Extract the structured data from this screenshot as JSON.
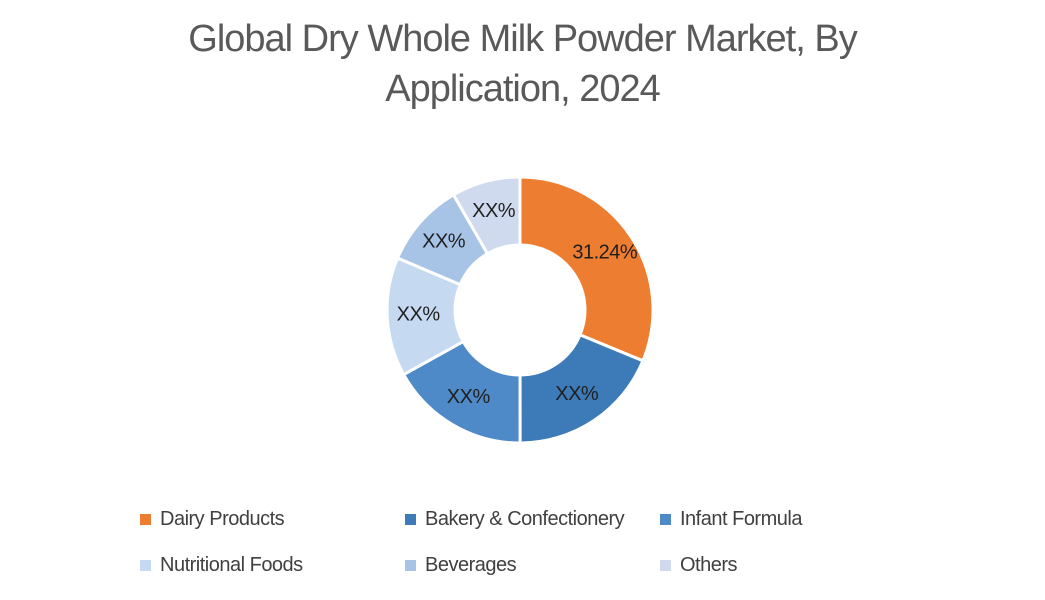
{
  "chart_data": {
    "type": "pie",
    "subtype": "donut",
    "title": "Global Dry Whole Milk Powder Market, By Application, 2024",
    "title_lines": [
      "Global Dry Whole Milk Powder Market, By",
      "Application, 2024"
    ],
    "unit": "%",
    "start_angle_deg": 0,
    "direction": "clockwise",
    "donut_hole_ratio": 0.49,
    "legend_position": "bottom",
    "grid": "off",
    "segments": [
      {
        "label": "Dairy Products",
        "value_pct": 31.24,
        "display_label": "31.24%",
        "color": "#ED7D31"
      },
      {
        "label": "Bakery & Confectionery",
        "value_pct": 18.75,
        "display_label": "XX%",
        "color": "#3D7AB8"
      },
      {
        "label": "Infant Formula",
        "value_pct": 16.95,
        "display_label": "XX%",
        "color": "#4E8AC8"
      },
      {
        "label": "Nutritional Foods",
        "value_pct": 14.45,
        "display_label": "XX%",
        "color": "#C5D9F1"
      },
      {
        "label": "Beverages",
        "value_pct": 10.28,
        "display_label": "XX%",
        "color": "#A7C4E6"
      },
      {
        "label": "Others",
        "value_pct": 8.33,
        "display_label": "XX%",
        "color": "#CFDAEF"
      }
    ],
    "colors": {
      "title_text": "#595959",
      "legend_text": "#404040",
      "slice_label_text": "#1F1F1F",
      "background": "#FFFFFF"
    }
  }
}
